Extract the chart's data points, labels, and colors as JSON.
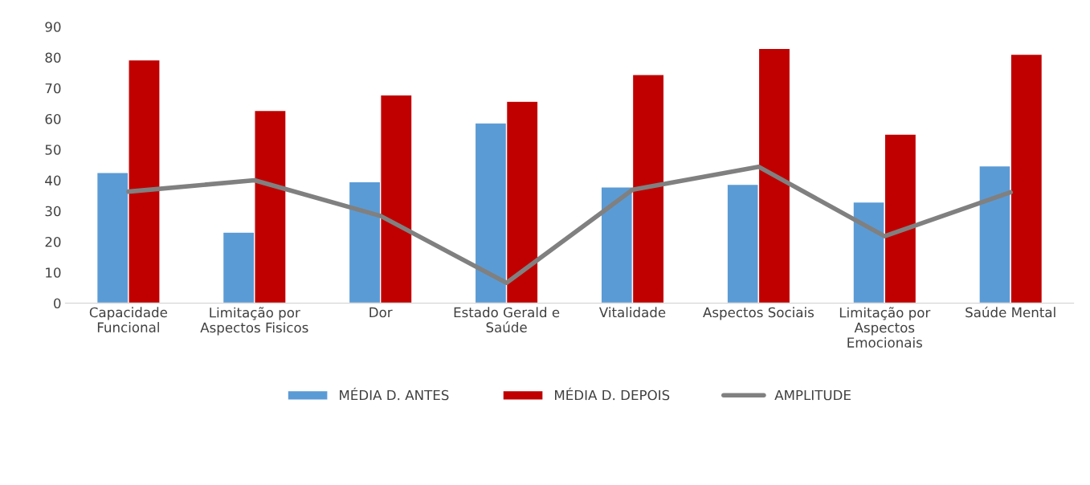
{
  "chart_data": {
    "type": "bar",
    "categories": [
      "Capacidade\nFuncional",
      "Limitação por\nAspectos Fisicos",
      "Dor",
      "Estado Gerald e\nSaúde",
      "Vitalidade",
      "Aspectos Sociais",
      "Limitação por\nAspectos\nEmocionais",
      "Saúde Mental"
    ],
    "series": [
      {
        "name": "MÉDIA D. ANTES",
        "color": "#5b9bd5",
        "values": [
          42.5,
          23.1,
          39.5,
          58.7,
          37.8,
          38.7,
          32.9,
          44.7
        ]
      },
      {
        "name": "MÉDIA D. DEPOIS",
        "color": "#c00000",
        "values": [
          79.2,
          62.7,
          67.8,
          65.7,
          74.4,
          82.9,
          55.0,
          81.0
        ]
      },
      {
        "name": "AMPLITUDE",
        "color": "#808080",
        "type": "line",
        "values": [
          36.3,
          40.0,
          28.4,
          6.6,
          36.9,
          44.4,
          21.8,
          36.1
        ]
      }
    ],
    "ylim": [
      0,
      90
    ],
    "yticks": [
      0,
      10,
      20,
      30,
      40,
      50,
      60,
      70,
      80,
      90
    ],
    "grid": false,
    "legend": "bottom"
  }
}
